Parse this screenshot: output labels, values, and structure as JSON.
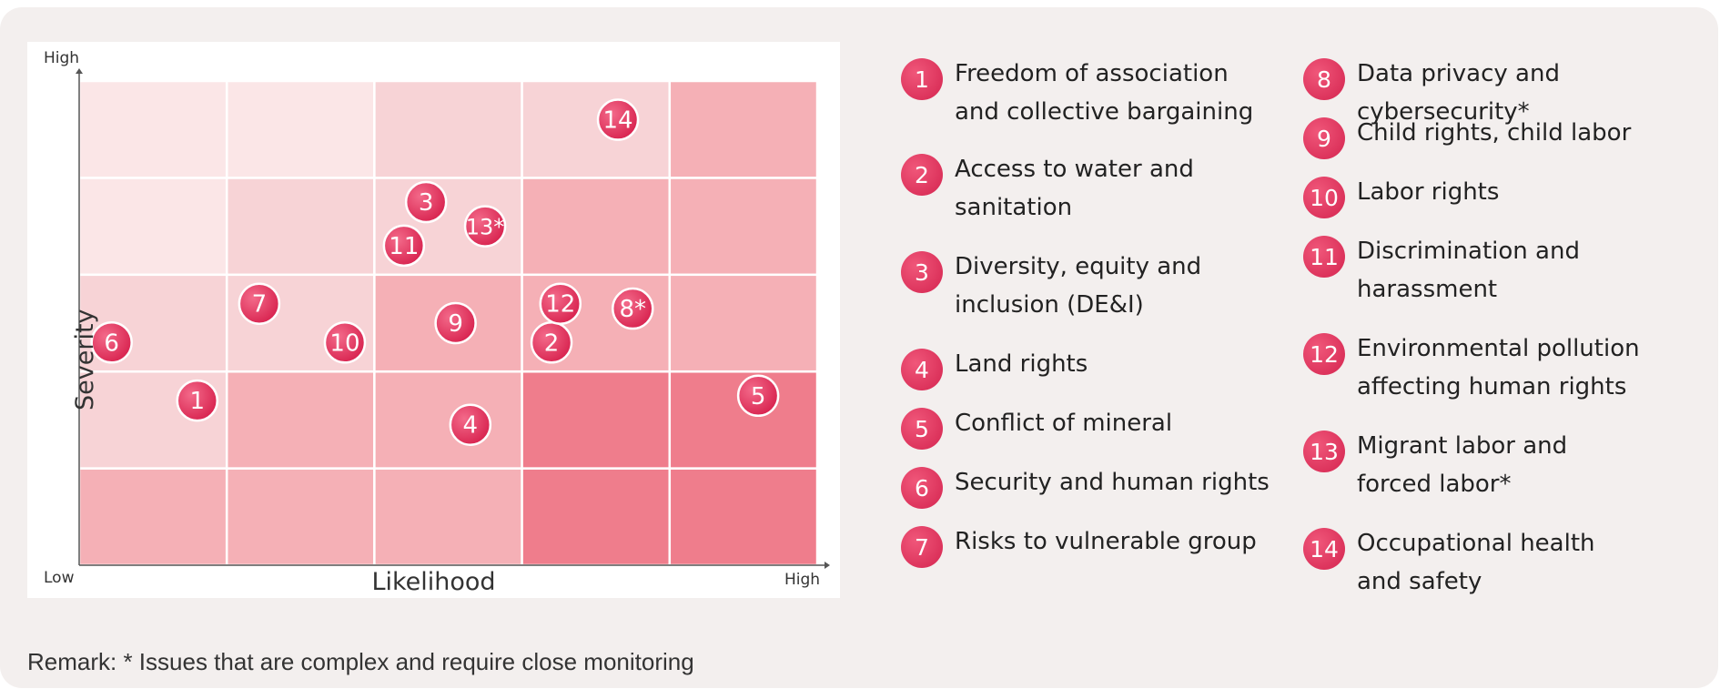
{
  "chart_data": {
    "type": "heatmap",
    "xlabel": "Likelihood",
    "ylabel": "Severity",
    "x_low_label": "Low",
    "x_high_label": "High",
    "y_low_label": "Low",
    "y_high_label": "High",
    "grid_cols": 5,
    "grid_rows": 5,
    "intensity_levels": [
      [
        2,
        2,
        2,
        3,
        3
      ],
      [
        1,
        2,
        2,
        3,
        3
      ],
      [
        1,
        1,
        2,
        2,
        2
      ],
      [
        0,
        1,
        1,
        2,
        2
      ],
      [
        0,
        0,
        1,
        1,
        2
      ]
    ],
    "level_colors": [
      "#fbe6e7",
      "#f7d3d6",
      "#f5b0b6",
      "#ef7d8c"
    ],
    "issues": [
      {
        "label": "1",
        "x": 0.8,
        "y": 1.7
      },
      {
        "label": "2",
        "x": 3.2,
        "y": 2.3
      },
      {
        "label": "3",
        "x": 2.35,
        "y": 3.75
      },
      {
        "label": "4",
        "x": 2.65,
        "y": 1.45
      },
      {
        "label": "5",
        "x": 4.6,
        "y": 1.75
      },
      {
        "label": "6",
        "x": 0.22,
        "y": 2.3
      },
      {
        "label": "7",
        "x": 1.22,
        "y": 2.7
      },
      {
        "label": "8*",
        "x": 3.75,
        "y": 2.65
      },
      {
        "label": "9",
        "x": 2.55,
        "y": 2.5
      },
      {
        "label": "10",
        "x": 1.8,
        "y": 2.3
      },
      {
        "label": "11",
        "x": 2.2,
        "y": 3.3
      },
      {
        "label": "12",
        "x": 3.26,
        "y": 2.7
      },
      {
        "label": "13*",
        "x": 2.75,
        "y": 3.5
      },
      {
        "label": "14",
        "x": 3.65,
        "y": 4.6
      }
    ],
    "marker_color": "#e83a64"
  },
  "legend": [
    {
      "num": "1",
      "label": "Freedom of association\nand collective bargaining"
    },
    {
      "num": "2",
      "label": "Access to water and\nsanitation"
    },
    {
      "num": "3",
      "label": "Diversity, equity and\ninclusion (DE&I)"
    },
    {
      "num": "4",
      "label": "Land rights"
    },
    {
      "num": "5",
      "label": "Conflict of mineral"
    },
    {
      "num": "6",
      "label": "Security and human rights"
    },
    {
      "num": "7",
      "label": "Risks to vulnerable group"
    },
    {
      "num": "8",
      "label": "Data privacy and cybersecurity*"
    },
    {
      "num": "9",
      "label": "Child rights, child labor"
    },
    {
      "num": "10",
      "label": "Labor rights"
    },
    {
      "num": "11",
      "label": "Discrimination and\nharassment"
    },
    {
      "num": "12",
      "label": "Environmental pollution\naffecting human rights"
    },
    {
      "num": "13",
      "label": "Migrant labor and\nforced labor*"
    },
    {
      "num": "14",
      "label": "Occupational health\nand safety"
    }
  ],
  "remark": "Remark: * Issues that are complex and require close monitoring"
}
